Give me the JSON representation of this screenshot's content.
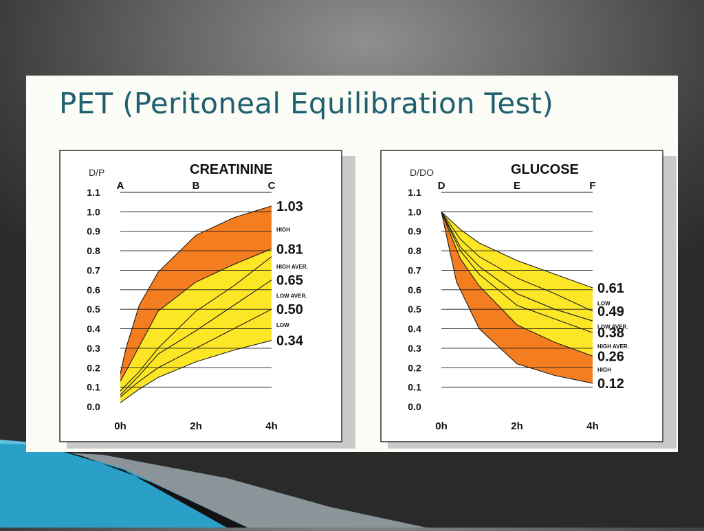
{
  "slide": {
    "title": "PET (Peritoneal Equilibration Test)"
  },
  "colors": {
    "title": "#1f6070",
    "orange": "#f47d1f",
    "yellow": "#fce626",
    "line": "#1a1a1a",
    "frame": "#222222",
    "deco_blue": "#2aa0c8",
    "deco_dark": "#121212"
  },
  "chart_data": [
    {
      "type": "area",
      "title": "CREATININE",
      "ylabel": "D/P",
      "ylim": [
        0,
        1.1
      ],
      "yticks": [
        "0.0",
        "0.1",
        "0.2",
        "0.3",
        "0.4",
        "0.5",
        "0.6",
        "0.7",
        "0.8",
        "0.9",
        "1.0",
        "1.1"
      ],
      "xticks": [
        "0h",
        "2h",
        "4h"
      ],
      "x": [
        0,
        2,
        4
      ],
      "top_letters": [
        "A",
        "B",
        "C"
      ],
      "curves": [
        {
          "x": [
            0,
            0.15,
            0.5,
            1,
            2,
            3,
            4
          ],
          "y": [
            0.17,
            0.3,
            0.52,
            0.69,
            0.88,
            0.97,
            1.03
          ]
        },
        {
          "x": [
            0,
            0.2,
            0.5,
            1,
            2,
            3,
            4
          ],
          "y": [
            0.13,
            0.2,
            0.31,
            0.49,
            0.64,
            0.73,
            0.81
          ]
        },
        {
          "x": [
            0,
            0.5,
            1,
            2,
            3,
            4
          ],
          "y": [
            0.08,
            0.18,
            0.3,
            0.49,
            0.62,
            0.77
          ]
        },
        {
          "x": [
            0,
            0.5,
            1,
            2,
            3,
            4
          ],
          "y": [
            0.06,
            0.16,
            0.27,
            0.39,
            0.52,
            0.65
          ]
        },
        {
          "x": [
            0,
            0.5,
            1,
            2,
            3,
            4
          ],
          "y": [
            0.05,
            0.13,
            0.2,
            0.3,
            0.4,
            0.5
          ]
        },
        {
          "x": [
            0,
            0.5,
            1,
            2,
            3,
            4
          ],
          "y": [
            0.02,
            0.09,
            0.15,
            0.23,
            0.29,
            0.34
          ]
        }
      ],
      "bands": [
        {
          "color": "orange",
          "from": 0,
          "to": 1
        },
        {
          "color": "yellow",
          "from": 1,
          "to": 5
        }
      ],
      "right_values": [
        {
          "value": 1.03,
          "label": "1.03"
        },
        {
          "value": 0.81,
          "label": "0.81"
        },
        {
          "value": 0.65,
          "label": "0.65"
        },
        {
          "value": 0.5,
          "label": "0.50"
        },
        {
          "value": 0.34,
          "label": "0.34"
        }
      ],
      "category_labels": [
        {
          "text": "HIGH",
          "value": 0.91
        },
        {
          "text": "HIGH AVER.",
          "value": 0.72
        },
        {
          "text": "LOW AVER.",
          "value": 0.57
        },
        {
          "text": "LOW",
          "value": 0.42
        }
      ]
    },
    {
      "type": "area",
      "title": "GLUCOSE",
      "ylabel": "D/DO",
      "ylim": [
        0,
        1.1
      ],
      "yticks": [
        "0.0",
        "0.1",
        "0.2",
        "0.3",
        "0.4",
        "0.5",
        "0.6",
        "0.7",
        "0.8",
        "0.9",
        "1.0",
        "1.1"
      ],
      "xticks": [
        "0h",
        "2h",
        "4h"
      ],
      "x": [
        0,
        2,
        4
      ],
      "top_letters": [
        "D",
        "E",
        "F"
      ],
      "curves": [
        {
          "x": [
            0,
            0.5,
            1,
            2,
            3,
            4
          ],
          "y": [
            1.0,
            0.91,
            0.84,
            0.75,
            0.68,
            0.61
          ]
        },
        {
          "x": [
            0,
            0.5,
            1,
            2,
            3,
            4
          ],
          "y": [
            1.0,
            0.86,
            0.77,
            0.66,
            0.58,
            0.49
          ]
        },
        {
          "x": [
            0,
            0.5,
            1,
            2,
            3,
            4
          ],
          "y": [
            1.0,
            0.82,
            0.72,
            0.58,
            0.5,
            0.44
          ]
        },
        {
          "x": [
            0,
            0.5,
            1,
            2,
            3,
            4
          ],
          "y": [
            1.0,
            0.8,
            0.68,
            0.52,
            0.45,
            0.38
          ]
        },
        {
          "x": [
            0,
            0.5,
            1,
            2,
            3,
            4
          ],
          "y": [
            1.0,
            0.76,
            0.62,
            0.42,
            0.33,
            0.26
          ]
        },
        {
          "x": [
            0,
            0.4,
            1,
            2,
            3,
            4
          ],
          "y": [
            1.0,
            0.64,
            0.4,
            0.22,
            0.16,
            0.12
          ]
        }
      ],
      "bands": [
        {
          "color": "yellow",
          "from": 0,
          "to": 4
        },
        {
          "color": "orange",
          "from": 4,
          "to": 5
        }
      ],
      "right_values": [
        {
          "value": 0.61,
          "label": "0.61"
        },
        {
          "value": 0.49,
          "label": "0.49"
        },
        {
          "value": 0.38,
          "label": "0.38"
        },
        {
          "value": 0.26,
          "label": "0.26"
        },
        {
          "value": 0.12,
          "label": "0.12"
        }
      ],
      "category_labels": [
        {
          "text": "LOW",
          "value": 0.53
        },
        {
          "text": "LOW AVER.",
          "value": 0.41
        },
        {
          "text": "HIGH AVER.",
          "value": 0.31
        },
        {
          "text": "HIGH",
          "value": 0.19
        }
      ]
    }
  ]
}
